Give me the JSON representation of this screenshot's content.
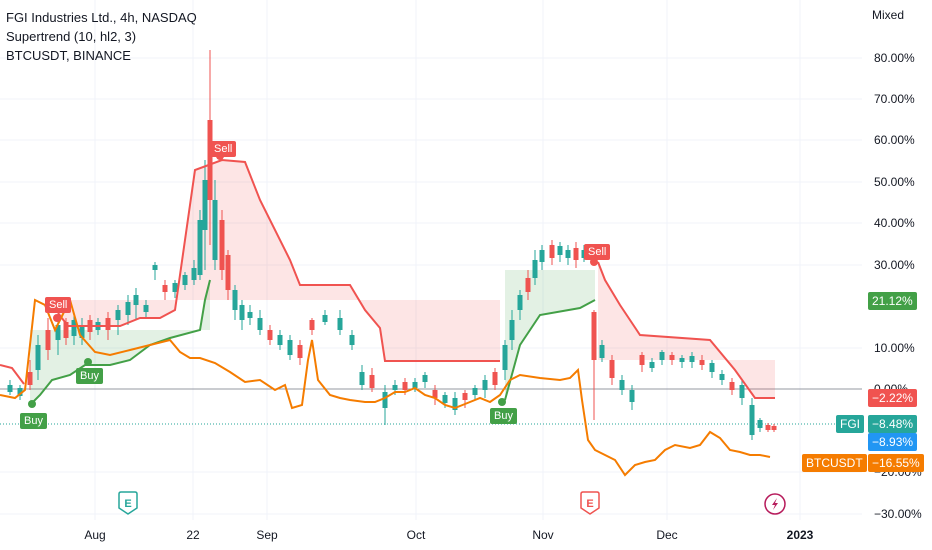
{
  "legend": {
    "symbol": "FGI Industries Ltd., 4h, NASDAQ",
    "indicator": "Supertrend (10, hl2, 3)",
    "compare": "BTCUSDT, BINANCE"
  },
  "scale_mode": "Mixed",
  "y_ticks": [
    "80.00%",
    "70.00%",
    "60.00%",
    "50.00%",
    "40.00%",
    "30.00%",
    "10.00%",
    "0.00%",
    "−20.00%",
    "−30.00%"
  ],
  "x_ticks": [
    {
      "label": "Aug",
      "bold": false
    },
    {
      "label": "22",
      "bold": false
    },
    {
      "label": "Sep",
      "bold": false
    },
    {
      "label": "Oct",
      "bold": false
    },
    {
      "label": "Nov",
      "bold": false
    },
    {
      "label": "Dec",
      "bold": false
    },
    {
      "label": "2023",
      "bold": true
    }
  ],
  "price_tags": {
    "supertrend_up": "21.12%",
    "supertrend_down": "−2.22%",
    "fgi": "−8.48%",
    "fgi_symbol": "FGI",
    "btc_alt": "−8.93%",
    "btc": "−16.55%",
    "btc_symbol": "BTCUSDT"
  },
  "signals": {
    "buy": "Buy",
    "sell": "Sell"
  },
  "event_icons": [
    "earnings-icon",
    "earnings-icon",
    "dividend-icon"
  ],
  "event_letters": {
    "earnings": "E"
  },
  "colors": {
    "up": "#26a69a",
    "down": "#ef5350",
    "supertrend_up": "#43a047",
    "supertrend_down": "#f05350",
    "btc": "#f57c00",
    "fgi_tag": "#26a69a",
    "btc_alt_tag": "#2196f3",
    "grid": "#f0f3fa"
  }
}
